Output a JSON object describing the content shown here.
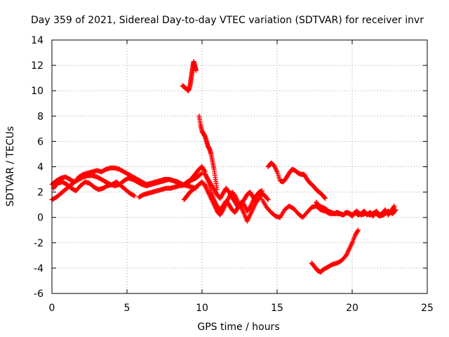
{
  "chart_data": {
    "type": "scatter",
    "title": "Day 359 of 2021, Sidereal Day-to-day VTEC variation (SDTVAR) for receiver invr",
    "xlabel": "GPS time / hours",
    "ylabel": "SDTVAR / TECUs",
    "xlim": [
      0,
      25
    ],
    "ylim": [
      -6,
      14
    ],
    "xticks": [
      0,
      5,
      10,
      15,
      20,
      25
    ],
    "yticks": [
      -6,
      -4,
      -2,
      0,
      2,
      4,
      6,
      8,
      10,
      12,
      14
    ],
    "grid": true,
    "marker": "+",
    "series_color": "#ff0000",
    "series": [
      {
        "name": "seg1",
        "x": [
          0.0,
          0.3,
          0.6,
          0.9,
          1.2,
          1.5,
          1.8,
          2.1,
          2.4,
          2.7,
          3.0,
          3.3,
          3.6,
          3.9,
          4.2,
          4.5,
          4.8,
          5.1,
          5.4,
          5.7,
          6.0,
          6.3,
          6.6,
          6.9,
          7.2,
          7.5,
          7.8,
          8.1,
          8.4,
          8.7,
          9.0,
          9.3,
          9.6
        ],
        "y": [
          2.6,
          2.9,
          3.1,
          3.2,
          3.0,
          2.8,
          3.2,
          3.4,
          3.5,
          3.6,
          3.7,
          3.6,
          3.8,
          3.9,
          3.9,
          3.8,
          3.6,
          3.4,
          3.2,
          3.0,
          2.8,
          2.6,
          2.7,
          2.8,
          2.9,
          3.0,
          3.0,
          2.9,
          2.7,
          2.5,
          2.8,
          3.0,
          3.1
        ]
      },
      {
        "name": "seg2",
        "x": [
          0.0,
          0.3,
          0.6,
          0.9,
          1.2,
          1.5,
          1.8,
          2.1,
          2.4,
          2.7,
          3.0,
          3.3,
          3.6,
          3.9,
          4.2,
          4.5,
          4.8,
          5.1,
          5.4,
          5.7,
          6.0,
          6.3,
          6.6,
          6.9,
          7.2,
          7.5,
          7.8,
          8.1,
          8.4,
          8.7,
          9.0,
          9.3,
          9.6
        ],
        "y": [
          1.4,
          1.6,
          1.9,
          2.2,
          2.5,
          2.8,
          3.0,
          3.2,
          3.3,
          3.3,
          3.2,
          3.0,
          2.8,
          2.6,
          2.5,
          2.6,
          2.9,
          3.1,
          3.0,
          2.8,
          2.6,
          2.5,
          2.6,
          2.7,
          2.8,
          2.9,
          3.0,
          2.9,
          2.8,
          2.6,
          2.5,
          2.4,
          2.3
        ]
      },
      {
        "name": "seg3",
        "x": [
          0.1,
          0.4,
          0.7,
          1.0,
          1.3,
          1.6,
          1.9,
          2.2,
          2.5,
          2.8,
          3.1,
          3.4,
          3.7,
          4.0,
          4.3,
          4.6,
          4.9,
          5.2,
          5.5
        ],
        "y": [
          2.3,
          2.7,
          2.8,
          2.6,
          2.3,
          2.1,
          2.5,
          2.8,
          2.7,
          2.4,
          2.2,
          2.3,
          2.5,
          2.6,
          2.8,
          2.5,
          2.2,
          1.9,
          1.7
        ]
      },
      {
        "name": "seg4",
        "x": [
          5.8,
          6.1,
          6.4,
          6.7,
          7.0,
          7.3,
          7.6,
          7.9,
          8.2,
          8.5,
          8.8,
          9.1,
          9.4,
          9.7,
          10.0
        ],
        "y": [
          1.6,
          1.8,
          1.9,
          2.0,
          2.1,
          2.2,
          2.3,
          2.3,
          2.4,
          2.5,
          2.6,
          2.8,
          3.0,
          3.2,
          3.5
        ]
      },
      {
        "name": "seg5",
        "x": [
          9.0,
          9.2,
          9.4,
          9.6,
          9.8,
          10.0,
          10.2,
          10.4,
          10.6,
          10.8,
          11.0,
          11.2,
          11.4,
          11.6,
          11.8,
          12.0,
          12.2,
          12.4,
          12.6,
          12.8,
          13.0,
          13.2,
          13.4,
          13.6,
          13.8,
          14.0
        ],
        "y": [
          2.6,
          2.9,
          3.2,
          3.5,
          3.8,
          4.0,
          3.6,
          2.8,
          2.0,
          1.4,
          0.9,
          0.6,
          0.9,
          1.3,
          1.0,
          0.6,
          0.4,
          0.8,
          1.2,
          1.0,
          0.5,
          0.8,
          1.3,
          1.7,
          2.0,
          2.1
        ]
      },
      {
        "name": "seg6",
        "x": [
          8.8,
          9.0,
          9.2,
          9.4,
          9.6,
          9.8,
          10.0,
          10.2,
          10.4,
          10.6,
          10.8,
          11.0,
          11.2,
          11.4,
          11.6,
          11.8,
          12.0,
          12.2,
          12.4,
          12.6,
          12.8,
          13.0,
          13.2,
          13.4,
          13.6
        ],
        "y": [
          1.4,
          1.7,
          2.0,
          2.2,
          2.4,
          2.6,
          2.8,
          2.5,
          2.0,
          1.5,
          1.0,
          0.5,
          0.2,
          0.6,
          1.1,
          1.6,
          2.0,
          1.7,
          1.2,
          0.8,
          0.3,
          -0.3,
          0.2,
          0.7,
          1.2
        ]
      },
      {
        "name": "seg7",
        "x": [
          10.2,
          10.4,
          10.6,
          10.8,
          11.0,
          11.2,
          11.4,
          11.6,
          11.8,
          12.0,
          12.2,
          12.4,
          12.6,
          12.8,
          13.0,
          13.2,
          13.4,
          13.6,
          13.8,
          14.0,
          14.2,
          14.4
        ],
        "y": [
          3.4,
          3.0,
          2.6,
          2.2,
          1.8,
          1.5,
          1.9,
          2.3,
          2.0,
          1.6,
          1.2,
          0.8,
          1.0,
          1.4,
          1.8,
          2.0,
          1.6,
          1.2,
          1.5,
          1.9,
          1.7,
          1.4
        ]
      },
      {
        "name": "seg8",
        "x": [
          8.7,
          8.8,
          8.9,
          9.0,
          9.1,
          9.2,
          9.25,
          9.3,
          9.35,
          9.4,
          9.45,
          9.5,
          9.55,
          9.6
        ],
        "y": [
          10.4,
          10.3,
          10.2,
          10.1,
          10.0,
          10.4,
          10.8,
          11.2,
          11.6,
          12.0,
          12.3,
          12.0,
          11.8,
          11.6
        ]
      },
      {
        "name": "seg9",
        "x": [
          9.8,
          9.9,
          10.0,
          10.1,
          10.2,
          10.3,
          10.4,
          10.5,
          10.6,
          10.7,
          10.8,
          10.9,
          11.0
        ],
        "y": [
          8.0,
          7.3,
          6.8,
          6.6,
          6.4,
          6.0,
          5.6,
          5.4,
          5.0,
          4.4,
          3.8,
          3.0,
          2.2
        ]
      },
      {
        "name": "seg10",
        "x": [
          14.4,
          14.6,
          14.8,
          15.0,
          15.2,
          15.4,
          15.6,
          15.8,
          16.0,
          16.2,
          16.4,
          16.6,
          16.8,
          17.0,
          17.2,
          17.4,
          17.6,
          17.8,
          18.0,
          18.2
        ],
        "y": [
          4.0,
          4.3,
          4.1,
          3.6,
          2.9,
          2.8,
          3.1,
          3.5,
          3.8,
          3.7,
          3.5,
          3.4,
          3.4,
          3.0,
          2.7,
          2.5,
          2.2,
          2.0,
          1.8,
          1.5
        ]
      },
      {
        "name": "seg11",
        "x": [
          14.0,
          14.3,
          14.6,
          14.9,
          15.2,
          15.5,
          15.8,
          16.1,
          16.4,
          16.7,
          17.0,
          17.3,
          17.6,
          17.9,
          18.2,
          18.5,
          18.8,
          19.1,
          19.4,
          19.7,
          20.0,
          20.3,
          20.6,
          20.9,
          21.2,
          21.5,
          21.8,
          22.1,
          22.4,
          22.7,
          22.9
        ],
        "y": [
          1.4,
          0.8,
          0.4,
          0.1,
          0.0,
          0.6,
          0.9,
          0.7,
          0.3,
          0.0,
          0.4,
          0.8,
          0.9,
          0.6,
          0.5,
          0.3,
          0.3,
          0.3,
          0.2,
          0.4,
          0.2,
          0.5,
          0.2,
          0.3,
          0.2,
          0.4,
          0.1,
          0.2,
          0.5,
          0.3,
          0.6
        ]
      },
      {
        "name": "seg12",
        "x": [
          17.6,
          17.8,
          18.0,
          18.2,
          18.4,
          18.6,
          18.8,
          19.0,
          19.2,
          19.4,
          19.6,
          19.8,
          20.0,
          20.2,
          20.4,
          20.6,
          20.8,
          21.0,
          21.2,
          21.4,
          21.6,
          21.8,
          22.0,
          22.2,
          22.4,
          22.6,
          22.8
        ],
        "y": [
          1.2,
          0.9,
          0.8,
          0.7,
          0.5,
          0.4,
          0.3,
          0.4,
          0.3,
          0.2,
          0.4,
          0.3,
          0.1,
          0.4,
          0.2,
          0.3,
          0.5,
          0.2,
          0.4,
          0.1,
          0.5,
          0.2,
          0.3,
          0.6,
          0.2,
          0.5,
          0.9
        ]
      },
      {
        "name": "seg13",
        "x": [
          17.3,
          17.5,
          17.7,
          17.9,
          18.1,
          18.4,
          18.7,
          19.0,
          19.3,
          19.6,
          19.8,
          20.0,
          20.2,
          20.4
        ],
        "y": [
          -3.6,
          -3.9,
          -4.2,
          -4.3,
          -4.1,
          -3.9,
          -3.7,
          -3.6,
          -3.4,
          -3.0,
          -2.5,
          -2.0,
          -1.4,
          -1.0
        ]
      }
    ]
  }
}
